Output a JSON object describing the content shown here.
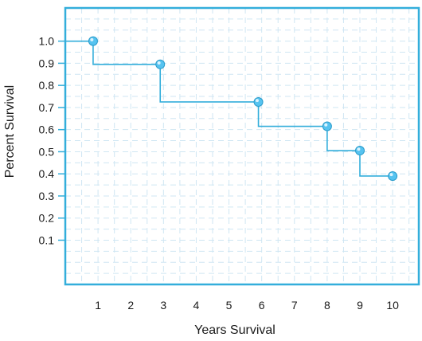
{
  "chart_data": {
    "type": "line",
    "step": true,
    "xlabel": "Years Survival",
    "ylabel": "Percent Survival",
    "xticks": [
      1,
      2,
      3,
      4,
      5,
      6,
      7,
      8,
      9,
      10
    ],
    "yticks": [
      "0.1",
      "0.2",
      "0.3",
      "0.4",
      "0.5",
      "0.6",
      "0.7",
      "0.8",
      "0.9",
      "1.0"
    ],
    "xlim": [
      0,
      10.8
    ],
    "ylim": [
      -0.1,
      1.15
    ],
    "grid": true,
    "line_color": "#33aedb",
    "point_color": "#56c3f0",
    "series": [
      {
        "points": [
          {
            "x": 0.85,
            "y": 1.0
          },
          {
            "x": 2.9,
            "y": 0.895
          },
          {
            "x": 5.9,
            "y": 0.725
          },
          {
            "x": 8.0,
            "y": 0.615
          },
          {
            "x": 9.0,
            "y": 0.505
          },
          {
            "x": 10.0,
            "y": 0.39
          }
        ]
      }
    ]
  }
}
